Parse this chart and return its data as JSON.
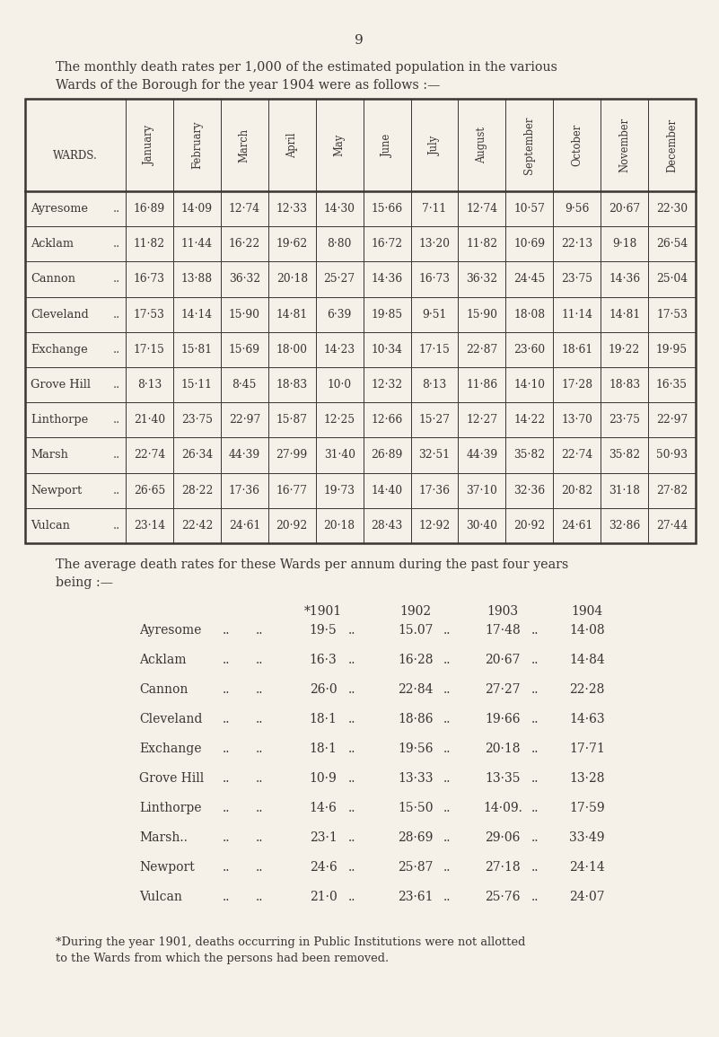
{
  "page_number": "9",
  "bg_color": "#f5f0e8",
  "text_color": "#3a3530",
  "table1": {
    "months": [
      "January",
      "February",
      "March",
      "April",
      "May",
      "June",
      "July",
      "August",
      "September",
      "October",
      "November",
      "December"
    ],
    "wards": [
      "Ayresome",
      "Acklam",
      "Cannon",
      "Cleveland",
      "Exchange",
      "Grove Hill",
      "Linthorpe",
      "Marsh",
      "Newport",
      "Vulcan"
    ],
    "ward_suffix": [
      " ..",
      " ..",
      " ..",
      " ..",
      " ..",
      " ..",
      " ..",
      " ..",
      " ..",
      " .."
    ],
    "display_data": [
      [
        "16·89",
        "14·09",
        "12·74",
        "12·33",
        "14·30",
        "15·66",
        "7·11",
        "12·74",
        "10·57",
        "9·56",
        "20·67",
        "22·30"
      ],
      [
        "11·82",
        "11·44",
        "16·22",
        "19·62",
        "8·80",
        "16·72",
        "13·20",
        "11·82",
        "10·69",
        "22·13",
        "9·18",
        "26·54"
      ],
      [
        "16·73",
        "13·88",
        "36·32",
        "20·18",
        "25·27",
        "14·36",
        "16·73",
        "36·32",
        "24·45",
        "23·75",
        "14·36",
        "25·04"
      ],
      [
        "17·53",
        "14·14",
        "15·90",
        "14·81",
        "6·39",
        "19·85",
        "9·51",
        "15·90",
        "18·08",
        "11·14",
        "14·81",
        "17·53"
      ],
      [
        "17·15",
        "15·81",
        "15·69",
        "18·00",
        "14·23",
        "10·34",
        "17·15",
        "22·87",
        "23·60",
        "18·61",
        "19·22",
        "19·95"
      ],
      [
        "8·13",
        "15·11",
        "8·45",
        "18·83",
        "10·0",
        "12·32",
        "8·13",
        "11·86",
        "14·10",
        "17·28",
        "18·83",
        "16·35"
      ],
      [
        "21·40",
        "23·75",
        "22·97",
        "15·87",
        "12·25",
        "12·66",
        "15·27",
        "12·27",
        "14·22",
        "13·70",
        "23·75",
        "22·97"
      ],
      [
        "22·74",
        "26·34",
        "44·39",
        "27·99",
        "31·40",
        "26·89",
        "32·51",
        "44·39",
        "35·82",
        "22·74",
        "35·82",
        "50·93"
      ],
      [
        "26·65",
        "28·22",
        "17·36",
        "16·77",
        "19·73",
        "14·40",
        "17·36",
        "37·10",
        "32·36",
        "20·82",
        "31·18",
        "27·82"
      ],
      [
        "23·14",
        "22·42",
        "24·61",
        "20·92",
        "20·18",
        "28·43",
        "12·92",
        "30·40",
        "20·92",
        "24·61",
        "32·86",
        "27·44"
      ]
    ]
  },
  "table2": {
    "years": [
      "*1901",
      "1902",
      "1903",
      "1904"
    ],
    "wards": [
      "Ayresome",
      "Acklam",
      "Cannon",
      "Cleveland",
      "Exchange",
      "Grove Hill",
      "Linthorpe",
      "Marsh..",
      "Newport",
      "Vulcan"
    ],
    "data": [
      [
        "19·5",
        "15.07",
        "17·48",
        "14·08"
      ],
      [
        "16·3",
        "16·28",
        "20·67",
        "14·84"
      ],
      [
        "26·0",
        "22·84",
        "27·27",
        "22·28"
      ],
      [
        "18·1",
        "18·86",
        "19·66",
        "14·63"
      ],
      [
        "18·1",
        "19·56",
        "20·18",
        "17·71"
      ],
      [
        "10·9",
        "13·33",
        "13·35",
        "13·28"
      ],
      [
        "14·6",
        "15·50",
        "14·09.",
        "17·59"
      ],
      [
        "23·1",
        "28·69",
        "29·06",
        "33·49"
      ],
      [
        "24·6",
        "25·87",
        "27·18",
        "24·14"
      ],
      [
        "21·0",
        "23·61",
        "25·76",
        "24·07"
      ]
    ]
  },
  "footnote_line1": "*During the year 1901, deaths occurring in Public Institutions were not allotted",
  "footnote_line2": "to the Wards from which the persons had been removed."
}
